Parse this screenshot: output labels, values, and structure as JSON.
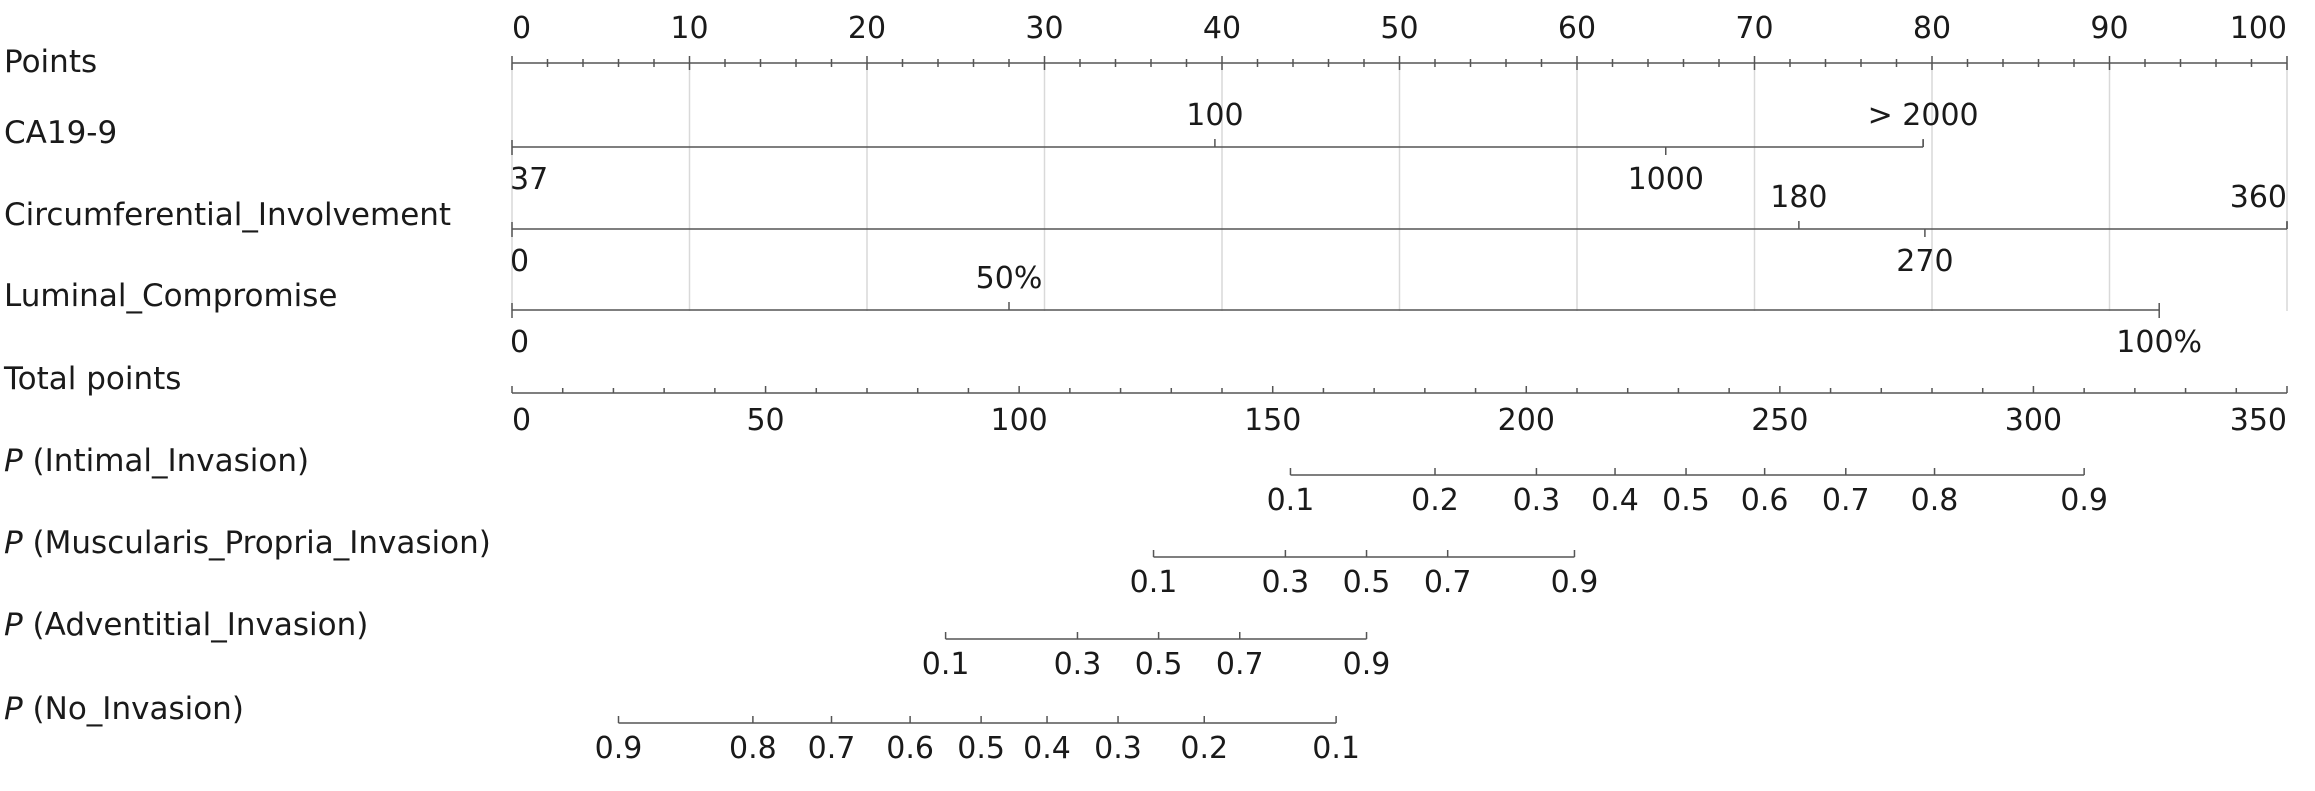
{
  "chart_data": {
    "type": "nomogram",
    "points_scale": {
      "label": "Points",
      "ticks": [
        "0",
        "10",
        "20",
        "30",
        "40",
        "50",
        "60",
        "70",
        "80",
        "90",
        "100"
      ],
      "min": 0,
      "max": 100
    },
    "predictors": [
      {
        "name": "CA19-9",
        "points_range": [
          0,
          79.5
        ],
        "values": [
          {
            "label": "37",
            "points": 0,
            "side": "below"
          },
          {
            "label": "100",
            "points": 39.6,
            "side": "above"
          },
          {
            "label": "1000",
            "points": 65,
            "side": "below"
          },
          {
            "label": "> 2000",
            "points": 79.5,
            "side": "above"
          }
        ]
      },
      {
        "name": "Circumferential_Involvement",
        "points_range": [
          0,
          100
        ],
        "values": [
          {
            "label": "0",
            "points": 0,
            "side": "below"
          },
          {
            "label": "180",
            "points": 72.5,
            "side": "above"
          },
          {
            "label": "270",
            "points": 79.6,
            "side": "below"
          },
          {
            "label": "360",
            "points": 100,
            "side": "above"
          }
        ]
      },
      {
        "name": "Luminal_Compromise",
        "points_range": [
          0,
          92.8
        ],
        "values": [
          {
            "label": "0",
            "points": 0,
            "side": "below"
          },
          {
            "label": "50%",
            "points": 28,
            "side": "above"
          },
          {
            "label": "100%",
            "points": 92.8,
            "side": "below"
          }
        ]
      }
    ],
    "total_points_scale": {
      "label": "Total points",
      "ticks": [
        "0",
        "50",
        "100",
        "150",
        "200",
        "250",
        "300",
        "350"
      ],
      "min": 0,
      "max": 350
    },
    "outcomes": [
      {
        "prefix": "P",
        "name": " (Intimal_Invasion)",
        "ticks": [
          {
            "label": "0.1",
            "total": 153.5
          },
          {
            "label": "0.2",
            "total": 182
          },
          {
            "label": "0.3",
            "total": 202
          },
          {
            "label": "0.4",
            "total": 217.5
          },
          {
            "label": "0.5",
            "total": 231.5
          },
          {
            "label": "0.6",
            "total": 247
          },
          {
            "label": "0.7",
            "total": 263
          },
          {
            "label": "0.8",
            "total": 280.5
          },
          {
            "label": "0.9",
            "total": 310
          }
        ]
      },
      {
        "prefix": "P",
        "name": " (Muscularis_Propria_Invasion)",
        "ticks": [
          {
            "label": "0.1",
            "total": 126.5
          },
          {
            "label": "0.3",
            "total": 152.5
          },
          {
            "label": "0.5",
            "total": 168.5
          },
          {
            "label": "0.7",
            "total": 184.5
          },
          {
            "label": "0.9",
            "total": 209.5
          }
        ]
      },
      {
        "prefix": "P",
        "name": " (Adventitial_Invasion)",
        "ticks": [
          {
            "label": "0.1",
            "total": 85.5
          },
          {
            "label": "0.3",
            "total": 111.5
          },
          {
            "label": "0.5",
            "total": 127.5
          },
          {
            "label": "0.7",
            "total": 143.5
          },
          {
            "label": "0.9",
            "total": 168.5
          }
        ]
      },
      {
        "prefix": "P",
        "name": " (No_Invasion)",
        "ticks": [
          {
            "label": "0.9",
            "total": 21
          },
          {
            "label": "0.8",
            "total": 47.5
          },
          {
            "label": "0.7",
            "total": 63
          },
          {
            "label": "0.6",
            "total": 78.5
          },
          {
            "label": "0.5",
            "total": 92.5
          },
          {
            "label": "0.4",
            "total": 105.5
          },
          {
            "label": "0.3",
            "total": 119.5
          },
          {
            "label": "0.2",
            "total": 136.5
          },
          {
            "label": "0.1",
            "total": 162.5
          }
        ]
      }
    ],
    "grid": true
  }
}
